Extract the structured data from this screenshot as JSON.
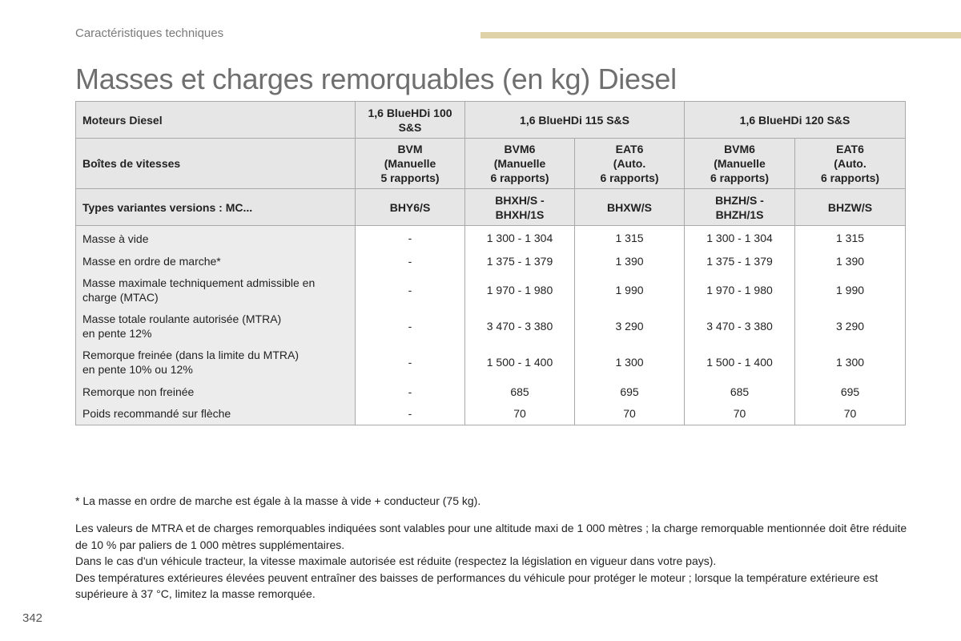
{
  "header": {
    "section": "Caractéristiques techniques",
    "title": "Masses et charges remorquables (en kg) Diesel"
  },
  "table": {
    "engine_label": "Moteurs Diesel",
    "engines": [
      "1,6 BlueHDi 100 S&S",
      "1,6 BlueHDi 115 S&S",
      "1,6 BlueHDi 120 S&S"
    ],
    "gearbox_label": "Boîtes de vitesses",
    "gearboxes": [
      [
        "BVM",
        "(Manuelle",
        "5 rapports)"
      ],
      [
        "BVM6",
        "(Manuelle",
        "6 rapports)"
      ],
      [
        "EAT6",
        "(Auto.",
        "6 rapports)"
      ],
      [
        "BVM6",
        "(Manuelle",
        "6 rapports)"
      ],
      [
        "EAT6",
        "(Auto.",
        "6 rapports)"
      ]
    ],
    "types_label": "Types variantes versions : MC...",
    "types": [
      "BHY6/S",
      "BHXH/S - BHXH/1S",
      "BHXW/S",
      "BHZH/S - BHZH/1S",
      "BHZW/S"
    ],
    "rows": [
      {
        "label": "Masse à vide",
        "values": [
          "-",
          "1 300 - 1 304",
          "1 315",
          "1 300 - 1 304",
          "1 315"
        ]
      },
      {
        "label": "Masse en ordre de marche*",
        "values": [
          "-",
          "1 375 - 1 379",
          "1 390",
          "1 375 - 1 379",
          "1 390"
        ]
      },
      {
        "label": "Masse maximale techniquement admissible en charge (MTAC)",
        "values": [
          "-",
          "1 970 - 1 980",
          "1 990",
          "1 970 - 1 980",
          "1 990"
        ]
      },
      {
        "label": "Masse totale roulante autorisée (MTRA)",
        "label2": "en pente 12%",
        "values": [
          "-",
          "3 470 - 3 380",
          "3 290",
          "3 470 - 3 380",
          "3 290"
        ]
      },
      {
        "label": "Remorque freinée (dans la limite du MTRA)",
        "label2": "en pente 10% ou 12%",
        "values": [
          "-",
          "1 500 - 1 400",
          "1 300",
          "1 500 - 1 400",
          "1 300"
        ]
      },
      {
        "label": "Remorque non freinée",
        "values": [
          "-",
          "685",
          "695",
          "685",
          "695"
        ]
      },
      {
        "label": "Poids recommandé sur flèche",
        "values": [
          "-",
          "70",
          "70",
          "70",
          "70"
        ]
      }
    ]
  },
  "footnote": "* La masse en ordre de marche est égale à la masse à vide + conducteur (75 kg).",
  "notes": [
    "Les valeurs de MTRA et de charges remorquables indiquées sont valables pour une altitude maxi de 1 000 mètres ; la charge remorquable mentionnée doit être réduite de 10 % par paliers de 1 000 mètres supplémentaires.",
    "Dans le cas d'un véhicule tracteur, la vitesse maximale autorisée est réduite (respectez la législation en vigueur dans votre pays).",
    "Des températures extérieures élevées peuvent entraîner des baisses de performances du véhicule pour protéger le moteur ; lorsque la température extérieure est supérieure à 37 °C, limitez la masse remorquée."
  ],
  "page_number": "342",
  "colors": {
    "accent_bar": "#dfd1a8",
    "header_bg": "#e6e6e6",
    "label_bg": "#ececec"
  }
}
